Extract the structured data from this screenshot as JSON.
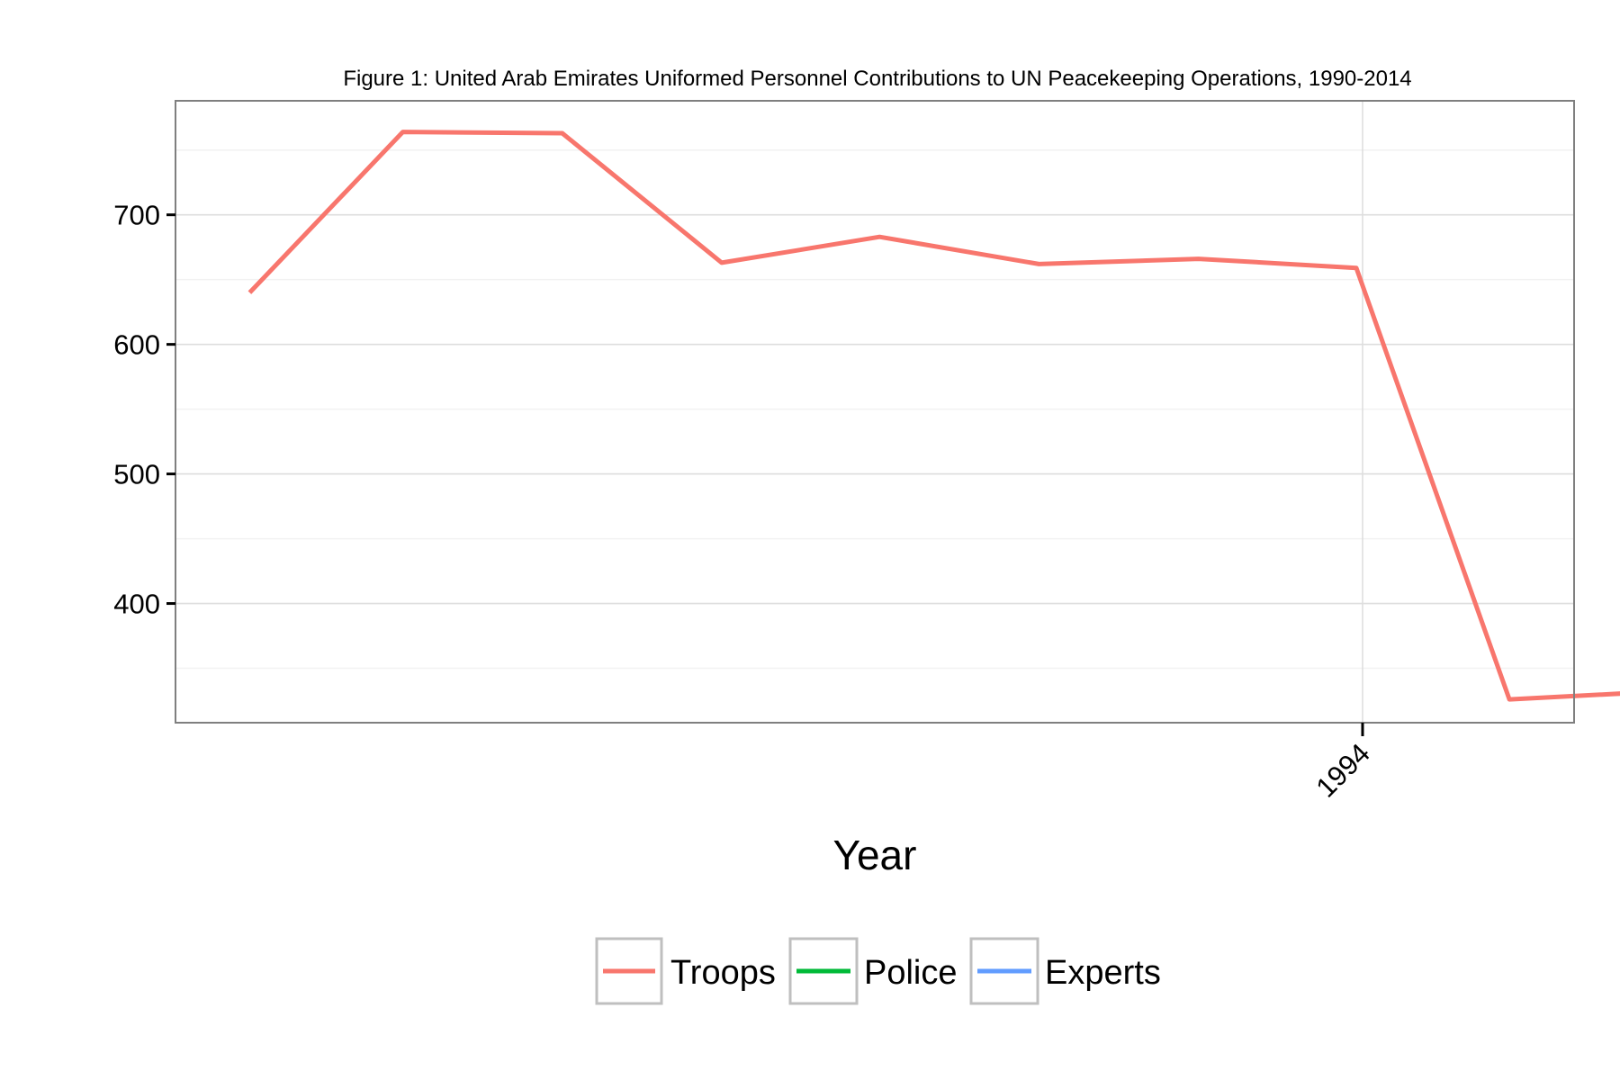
{
  "chart_data": {
    "type": "line",
    "title": "Figure 1: United Arab Emirates Uniformed Personnel Contributions to UN Peacekeeping Operations, 1990-2014",
    "xlabel": "Year",
    "ylabel": "",
    "x_ticks": [
      "1994"
    ],
    "y_ticks": [
      400,
      500,
      600,
      700
    ],
    "xlim": [
      1986.48,
      1995.34
    ],
    "ylim": [
      308,
      788
    ],
    "grid": true,
    "legend": {
      "position": "bottom",
      "entries": [
        "Troops",
        "Police",
        "Experts"
      ]
    },
    "series": [
      {
        "name": "Troops",
        "color": "#F8766D",
        "x": [
          1986.95,
          1987.92,
          1988.93,
          1989.94,
          1990.94,
          1991.95,
          1992.96,
          1993.96,
          1994.93,
          1995.87
        ],
        "y": [
          640,
          764,
          763,
          663,
          683,
          662,
          666,
          659,
          326,
          332
        ]
      },
      {
        "name": "Police",
        "color": "#00BA38",
        "x": [],
        "y": []
      },
      {
        "name": "Experts",
        "color": "#619CFF",
        "x": [],
        "y": []
      }
    ]
  }
}
